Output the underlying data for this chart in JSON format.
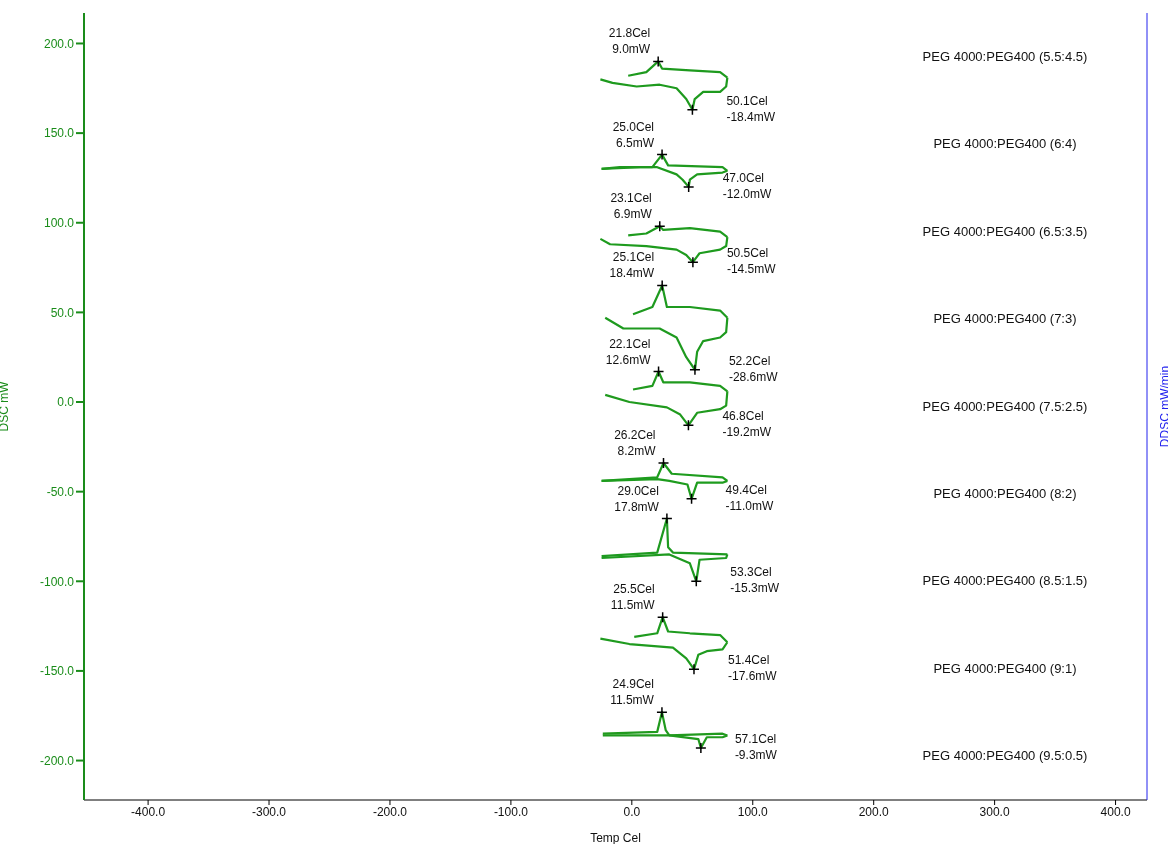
{
  "chart_data": {
    "type": "line",
    "xlabel": "Temp Cel",
    "ylabel": "DSC mW",
    "y2label": "DDSC mW/min",
    "xlim": [
      -453,
      426
    ],
    "ylim": [
      -222,
      217
    ],
    "xticks": [
      {
        "value": -400,
        "label": "-400.0"
      },
      {
        "value": -300,
        "label": "-300.0"
      },
      {
        "value": -200,
        "label": "-200.0"
      },
      {
        "value": -100,
        "label": "-100.0"
      },
      {
        "value": 0,
        "label": "0.0"
      },
      {
        "value": 100,
        "label": "100.0"
      },
      {
        "value": 200,
        "label": "200.0"
      },
      {
        "value": 300,
        "label": "300.0"
      },
      {
        "value": 400,
        "label": "400.0"
      }
    ],
    "yticks": [
      {
        "value": -200,
        "label": "-200.0"
      },
      {
        "value": -150,
        "label": "-150.0"
      },
      {
        "value": -100,
        "label": "-100.0"
      },
      {
        "value": -50,
        "label": "-50.0"
      },
      {
        "value": 0,
        "label": "0.0"
      },
      {
        "value": 50,
        "label": "50.0"
      },
      {
        "value": 100,
        "label": "100.0"
      },
      {
        "value": 150,
        "label": "150.0"
      },
      {
        "value": 200,
        "label": "200.0"
      }
    ],
    "grid": false,
    "marker": "none",
    "series": [
      {
        "color": "#1e9a1e",
        "x": [
          -3,
          12,
          21.8,
          25,
          48,
          73,
          79
        ],
        "values": [
          182,
          184,
          190,
          186,
          185,
          184,
          181
        ]
      },
      {
        "color": "#1e9a1e",
        "x": [
          79,
          78,
          73,
          59,
          52,
          50.1,
          45,
          37,
          23,
          4,
          -16,
          -26
        ],
        "values": [
          181,
          176,
          173,
          173,
          169,
          163,
          169,
          175,
          177,
          176,
          178,
          180
        ]
      },
      {
        "color": "#1f9a1e",
        "x": [
          -25,
          7,
          17,
          25.0,
          30,
          75,
          79
        ],
        "values": [
          130,
          131,
          131,
          138,
          132,
          131,
          129
        ]
      },
      {
        "color": "#1f9a1e",
        "x": [
          79,
          75,
          54,
          48,
          47.0,
          42,
          37,
          21,
          -10,
          -25
        ],
        "values": [
          129,
          128,
          127,
          124,
          120,
          124,
          127,
          131,
          131,
          130
        ]
      },
      {
        "color": "#1e9b1e",
        "x": [
          -3,
          12,
          23.1,
          26,
          48,
          73,
          79
        ],
        "values": [
          93,
          94,
          98,
          96,
          97,
          95,
          92
        ]
      },
      {
        "color": "#1e9b1e",
        "x": [
          79,
          78,
          73,
          56,
          50.5,
          45,
          37,
          12,
          -18,
          -26
        ],
        "values": [
          92,
          87,
          85,
          83,
          78,
          82,
          85,
          87,
          88,
          91
        ]
      },
      {
        "color": "#1e9a1f",
        "x": [
          1,
          17,
          25.1,
          29,
          48,
          73,
          79
        ],
        "values": [
          49,
          53,
          65,
          53,
          53,
          51,
          47
        ]
      },
      {
        "color": "#1e9a1f",
        "x": [
          79,
          78,
          73,
          59,
          54,
          52.2,
          45,
          37,
          23,
          -7,
          -22
        ],
        "values": [
          47,
          39,
          36,
          34,
          28,
          18,
          25,
          36,
          41,
          41,
          47
        ]
      },
      {
        "color": "#209a1e",
        "x": [
          1,
          17,
          22.1,
          26,
          48,
          73,
          79
        ],
        "values": [
          7,
          9,
          17,
          11,
          11,
          9,
          6
        ]
      },
      {
        "color": "#209a1e",
        "x": [
          79,
          78,
          73,
          54,
          46.8,
          40,
          29,
          -2,
          -22
        ],
        "values": [
          6,
          -2,
          -4,
          -6,
          -13,
          -7,
          -3,
          0,
          4
        ]
      },
      {
        "color": "#1e9c1e",
        "x": [
          -25,
          21,
          26.2,
          33,
          75,
          79
        ],
        "values": [
          -44,
          -42,
          -34,
          -40,
          -42,
          -44
        ]
      },
      {
        "color": "#1e9c1e",
        "x": [
          79,
          75,
          54,
          49.4,
          46,
          31,
          21,
          -25
        ],
        "values": [
          -44,
          -45,
          -45,
          -54,
          -46,
          -44,
          -43,
          -44
        ]
      },
      {
        "color": "#1e9a20",
        "x": [
          -25,
          21,
          29.0,
          30,
          34,
          79
        ],
        "values": [
          -86,
          -84,
          -65,
          -81,
          -84,
          -85
        ]
      },
      {
        "color": "#1e9a20",
        "x": [
          79,
          78,
          56,
          53.3,
          48,
          31,
          -25
        ],
        "values": [
          -85,
          -87,
          -88,
          -100,
          -90,
          -85,
          -87
        ]
      },
      {
        "color": "#1f9b1f",
        "x": [
          2,
          21,
          25.5,
          30,
          48,
          73,
          79
        ],
        "values": [
          -131,
          -129,
          -120,
          -128,
          -129,
          -130,
          -134
        ]
      },
      {
        "color": "#1f9b1f",
        "x": [
          79,
          75,
          62,
          55,
          51.4,
          45,
          34,
          -2,
          -26
        ],
        "values": [
          -134,
          -138,
          -139,
          -141,
          -149,
          -143,
          -137,
          -135,
          -132
        ]
      },
      {
        "color": "#219a1e",
        "x": [
          -24,
          21,
          24.9,
          28,
          31,
          75,
          79
        ],
        "values": [
          -185,
          -184,
          -173,
          -183,
          -186,
          -185,
          -186
        ]
      },
      {
        "color": "#219a1e",
        "x": [
          79,
          75,
          62,
          57.1,
          55,
          31,
          -24
        ],
        "values": [
          -186,
          -187,
          -187,
          -193,
          -188,
          -186,
          -186
        ]
      },
      {
        "type": "scatter",
        "color": "#000000",
        "marker": "cross",
        "x": [
          21.8,
          50.1,
          25.0,
          47.0,
          23.1,
          50.5,
          25.1,
          52.2,
          22.1,
          46.8,
          26.2,
          49.4,
          29.0,
          53.3,
          25.5,
          51.4,
          24.9,
          57.1
        ],
        "values": [
          190,
          163,
          138,
          120,
          98,
          78,
          65,
          18,
          17,
          -13,
          -34,
          -54,
          -65,
          -100,
          -120,
          -149,
          -173,
          -193
        ]
      }
    ],
    "annotations": [
      {
        "text": "21.8Cel\n9.0mW",
        "x": 21.8,
        "y": 190
      },
      {
        "text": "50.1Cel\n-18.4mW",
        "x": 50.1,
        "y": 163
      },
      {
        "text": "25.0Cel\n6.5mW",
        "x": 25.0,
        "y": 138
      },
      {
        "text": "47.0Cel\n-12.0mW",
        "x": 47.0,
        "y": 120
      },
      {
        "text": "23.1Cel\n6.9mW",
        "x": 23.1,
        "y": 98
      },
      {
        "text": "50.5Cel\n-14.5mW",
        "x": 50.5,
        "y": 78
      },
      {
        "text": "25.1Cel\n18.4mW",
        "x": 25.1,
        "y": 65
      },
      {
        "text": "52.2Cel\n-28.6mW",
        "x": 52.2,
        "y": 18
      },
      {
        "text": "22.1Cel\n12.6mW",
        "x": 22.1,
        "y": 17
      },
      {
        "text": "46.8Cel\n-19.2mW",
        "x": 46.8,
        "y": -13
      },
      {
        "text": "26.2Cel\n8.2mW",
        "x": 26.2,
        "y": -34
      },
      {
        "text": "49.4Cel\n-11.0mW",
        "x": 49.4,
        "y": -54
      },
      {
        "text": "29.0Cel\n17.8mW",
        "x": 29.0,
        "y": -65
      },
      {
        "text": "53.3Cel\n-15.3mW",
        "x": 53.3,
        "y": -100
      },
      {
        "text": "25.5Cel\n11.5mW",
        "x": 25.5,
        "y": -120
      },
      {
        "text": "51.4Cel\n-17.6mW",
        "x": 51.4,
        "y": -149
      },
      {
        "text": "24.9Cel\n11.5mW",
        "x": 24.9,
        "y": -173
      },
      {
        "text": "57.1Cel\n-9.3mW",
        "x": 57.1,
        "y": -193
      },
      "PEG 4000:PEG400 (5.5:4.5)",
      "PEG 4000:PEG400 (6:4)",
      "PEG 4000:PEG400 (6.5:3.5)",
      "PEG 4000:PEG400 (7:3)",
      "PEG 4000:PEG400 (7.5:2.5)",
      "PEG 4000:PEG400 (8:2)",
      "PEG 4000:PEG400 (8.5:1.5)",
      "PEG 4000:PEG400 (9:1)",
      "PEG 4000:PEG400 (9.5:0.5)"
    ]
  }
}
